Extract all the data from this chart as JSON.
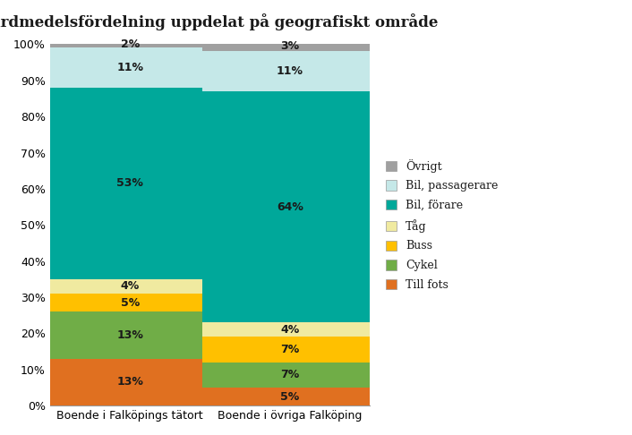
{
  "title": "Färdmedelsfördelning uppdelat på geografiskt område",
  "categories": [
    "Boende i Falköpings tätort",
    "Boende i övriga Falköping"
  ],
  "segments": [
    {
      "label": "Till fots",
      "color": "#E07020",
      "values": [
        13,
        5
      ]
    },
    {
      "label": "Cykel",
      "color": "#70AD47",
      "values": [
        13,
        7
      ]
    },
    {
      "label": "Buss",
      "color": "#FFC000",
      "values": [
        5,
        7
      ]
    },
    {
      "label": "Tåg",
      "color": "#F0EAA0",
      "values": [
        4,
        4
      ]
    },
    {
      "label": "Bil, förare",
      "color": "#00A89A",
      "values": [
        53,
        64
      ]
    },
    {
      "label": "Bil, passagerare",
      "color": "#C5E8E8",
      "values": [
        11,
        11
      ]
    },
    {
      "label": "Övrigt",
      "color": "#A0A0A0",
      "values": [
        2,
        3
      ]
    }
  ],
  "legend_order": [
    "Övrigt",
    "Bil, passagerare",
    "Bil, förare",
    "Tåg",
    "Buss",
    "Cykel",
    "Till fots"
  ],
  "ylim": [
    0,
    100
  ],
  "yticks": [
    0,
    10,
    20,
    30,
    40,
    50,
    60,
    70,
    80,
    90,
    100
  ],
  "ytick_labels": [
    "0%",
    "10%",
    "20%",
    "30%",
    "40%",
    "50%",
    "60%",
    "70%",
    "80%",
    "90%",
    "100%"
  ],
  "bar_width": 0.55,
  "bar_positions": [
    0.25,
    0.75
  ],
  "xlim": [
    0.0,
    1.0
  ],
  "background_color": "#FFFFFF",
  "title_fontsize": 12,
  "label_fontsize": 9,
  "tick_fontsize": 9,
  "legend_fontsize": 9,
  "text_color": "#1A1A1A"
}
